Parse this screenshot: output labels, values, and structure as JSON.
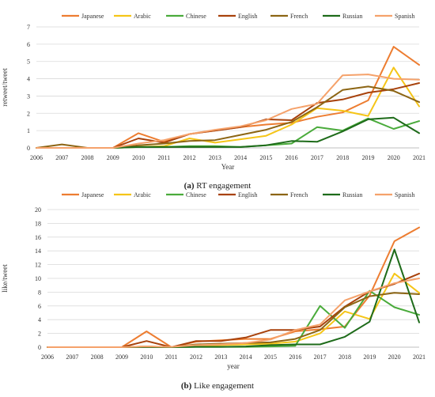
{
  "chart_data": [
    {
      "type": "line",
      "caption_letter": "(a)",
      "caption_text": "RT engagement",
      "xlabel": "Year",
      "ylabel": "retweet/tweet",
      "ylim": [
        0,
        7
      ],
      "yticks": [
        0,
        1,
        2,
        3,
        4,
        5,
        6,
        7
      ],
      "categories": [
        "2006",
        "2007",
        "2008",
        "2009",
        "2010",
        "2011",
        "2012",
        "2013",
        "2014",
        "2015",
        "2016",
        "2017",
        "2018",
        "2019",
        "2020",
        "2021"
      ],
      "legend_position": "top",
      "series": [
        {
          "name": "Japanese",
          "color": "#ed7d31",
          "values": [
            0,
            0,
            0,
            0,
            0.85,
            0.35,
            0.8,
            1.0,
            1.2,
            1.35,
            1.45,
            1.8,
            2.05,
            2.75,
            5.85,
            4.8
          ]
        },
        {
          "name": "Arabic",
          "color": "#f5c518",
          "values": [
            0,
            0,
            0,
            0,
            0.05,
            0.1,
            0.55,
            0.3,
            0.5,
            0.7,
            1.35,
            2.3,
            2.15,
            1.85,
            4.65,
            2.4
          ]
        },
        {
          "name": "Chinese",
          "color": "#4aab3b",
          "values": [
            0,
            0,
            0,
            0,
            0.05,
            0.05,
            0.1,
            0.1,
            0.05,
            0.15,
            0.25,
            1.2,
            1.0,
            1.7,
            1.1,
            1.55
          ]
        },
        {
          "name": "English",
          "color": "#a8420c",
          "values": [
            0,
            0,
            0,
            0,
            0.55,
            0.3,
            0.8,
            1.0,
            1.2,
            1.65,
            1.6,
            2.6,
            2.8,
            3.2,
            3.4,
            3.75
          ]
        },
        {
          "name": "French",
          "color": "#8c6514",
          "values": [
            0,
            0.2,
            0,
            0,
            0.15,
            0.25,
            0.4,
            0.45,
            0.75,
            1.05,
            1.5,
            2.35,
            3.35,
            3.55,
            3.3,
            2.65
          ]
        },
        {
          "name": "Russian",
          "color": "#1e6b1a",
          "values": [
            0,
            0,
            0,
            0,
            0.05,
            0.05,
            0.05,
            0.05,
            0.05,
            0.15,
            0.4,
            0.35,
            0.95,
            1.65,
            1.75,
            0.85
          ]
        },
        {
          "name": "Spanish",
          "color": "#f5a26b",
          "values": [
            0,
            0,
            0,
            0,
            0.25,
            0.45,
            0.8,
            1.05,
            1.25,
            1.6,
            2.25,
            2.55,
            4.2,
            4.25,
            4.0,
            3.95
          ]
        }
      ]
    },
    {
      "type": "line",
      "caption_letter": "(b)",
      "caption_text": "Like engagement",
      "xlabel": "year",
      "ylabel": "like/tweet",
      "ylim": [
        0,
        20
      ],
      "yticks": [
        0,
        2,
        4,
        6,
        8,
        10,
        12,
        14,
        16,
        18,
        20
      ],
      "categories": [
        "2006",
        "2007",
        "2008",
        "2009",
        "2010",
        "2011",
        "2012",
        "2013",
        "2014",
        "2015",
        "2016",
        "2017",
        "2018",
        "2019",
        "2020",
        "2021"
      ],
      "legend_position": "top",
      "series": [
        {
          "name": "Japanese",
          "color": "#ed7d31",
          "values": [
            0,
            0,
            0,
            0,
            2.3,
            0,
            0.8,
            1.0,
            1.2,
            1.2,
            2.3,
            2.6,
            3.0,
            7.5,
            15.4,
            17.4
          ]
        },
        {
          "name": "Arabic",
          "color": "#f5c518",
          "values": [
            0,
            0,
            0,
            0,
            0.1,
            0,
            0.2,
            0.3,
            0.4,
            0.5,
            0.8,
            2.0,
            5.2,
            4.1,
            10.7,
            7.9
          ]
        },
        {
          "name": "Chinese",
          "color": "#4aab3b",
          "values": [
            0,
            0,
            0,
            0,
            0.05,
            0,
            0.05,
            0.05,
            0.05,
            0.1,
            0.2,
            6.0,
            2.8,
            8.2,
            5.8,
            4.7
          ]
        },
        {
          "name": "English",
          "color": "#a8420c",
          "values": [
            0,
            0,
            0,
            0,
            0.9,
            0,
            0.9,
            0.9,
            1.4,
            2.5,
            2.5,
            3.0,
            5.9,
            8.1,
            9.2,
            10.7
          ]
        },
        {
          "name": "French",
          "color": "#8c6514",
          "values": [
            0,
            0,
            0,
            0,
            0.1,
            0,
            0.4,
            0.5,
            0.6,
            0.7,
            1.2,
            2.5,
            5.8,
            7.4,
            7.9,
            7.7
          ]
        },
        {
          "name": "Russian",
          "color": "#1e6b1a",
          "values": [
            0,
            0,
            0,
            0,
            0,
            0,
            0.05,
            0.05,
            0.1,
            0.3,
            0.4,
            0.4,
            1.5,
            3.7,
            14.2,
            3.6
          ]
        },
        {
          "name": "Spanish",
          "color": "#f5a26b",
          "values": [
            0,
            0,
            0,
            0,
            0.1,
            0.05,
            0.3,
            0.4,
            0.6,
            1.1,
            2.5,
            3.3,
            6.8,
            8.1,
            9.3,
            10.0
          ]
        }
      ]
    }
  ]
}
